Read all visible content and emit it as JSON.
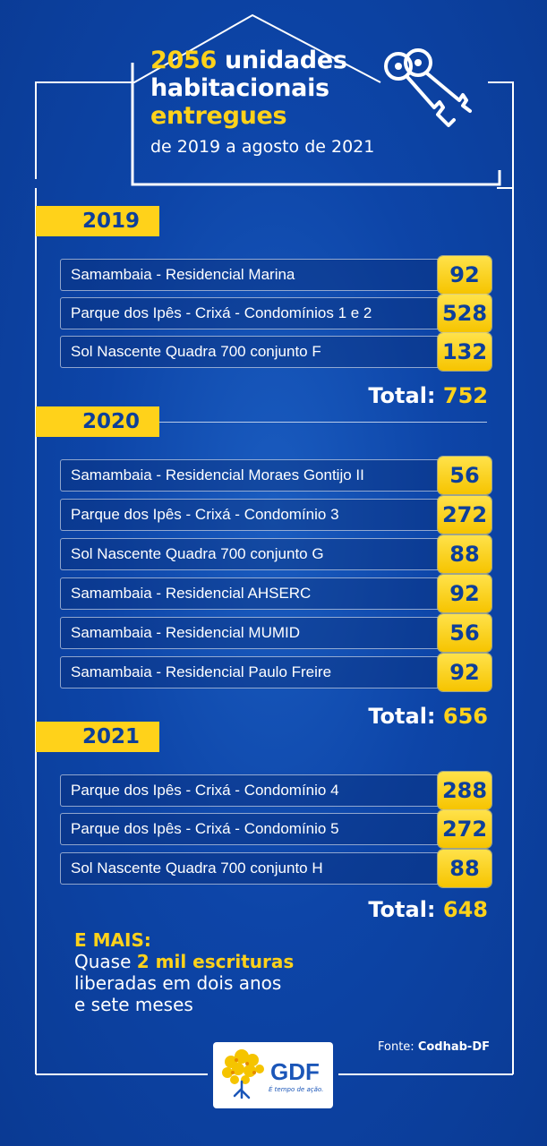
{
  "header": {
    "title_number": "2056",
    "title_line1_rest": " unidades",
    "title_line2": "habitacionais",
    "title_line3": "entregues",
    "subtitle": "de 2019 a agosto de 2021"
  },
  "sections": [
    {
      "year": "2019",
      "rows": [
        {
          "label": "Samambaia - Residencial Marina",
          "value": "92"
        },
        {
          "label": "Parque dos Ipês - Crixá - Condomínios 1 e 2",
          "value": "528"
        },
        {
          "label": "Sol Nascente Quadra 700 conjunto F",
          "value": "132"
        }
      ],
      "total_label": "Total:",
      "total_value": "752"
    },
    {
      "year": "2020",
      "rows": [
        {
          "label": "Samambaia - Residencial Moraes Gontijo II",
          "value": "56"
        },
        {
          "label": "Parque dos Ipês - Crixá - Condomínio 3",
          "value": "272"
        },
        {
          "label": "Sol Nascente Quadra 700 conjunto G",
          "value": "88"
        },
        {
          "label": "Samambaia - Residencial AHSERC",
          "value": "92"
        },
        {
          "label": "Samambaia - Residencial MUMID",
          "value": "56"
        },
        {
          "label": "Samambaia - Residencial Paulo Freire",
          "value": "92"
        }
      ],
      "total_label": "Total:",
      "total_value": "656"
    },
    {
      "year": "2021",
      "rows": [
        {
          "label": "Parque dos Ipês - Crixá - Condomínio 4",
          "value": "288"
        },
        {
          "label": "Parque dos Ipês - Crixá - Condomínio 5",
          "value": "272"
        },
        {
          "label": "Sol Nascente Quadra 700 conjunto H",
          "value": "88"
        }
      ],
      "total_label": "Total:",
      "total_value": "648"
    }
  ],
  "extra": {
    "title": "E MAIS:",
    "line1_prefix": "Quase ",
    "line1_highlight": "2 mil escrituras",
    "line2": "liberadas em dois anos",
    "line3": "e sete meses"
  },
  "source": {
    "label": "Fonte: ",
    "name": "Codhab-DF"
  },
  "logo": {
    "name": "GDF",
    "slogan": "É tempo de ação."
  },
  "colors": {
    "background": "#0d45a8",
    "accent_yellow": "#ffd21a",
    "text_dark_blue": "#0d3f9a"
  }
}
